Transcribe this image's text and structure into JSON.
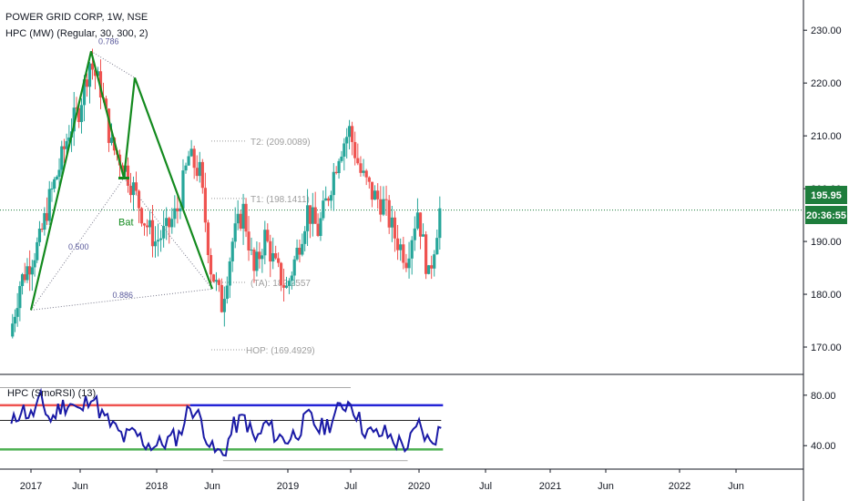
{
  "header": {
    "symbol_line": "POWER GRID CORP, 1W, NSE",
    "indicator_line": "HPC (MW) (Regular, 30, 300, 2)",
    "subpane_label": "HPC (SmoRSI) (13)"
  },
  "price_badge": {
    "price": "195.95",
    "countdown": "20:36:55",
    "color": "#1e7d3c"
  },
  "colors": {
    "up": "#26a69a",
    "down": "#ef5350",
    "pattern": "#138a1e",
    "rsi": "#1a1aa6",
    "upper_band": "#2424d6",
    "lower_band": "#4caf50",
    "grid_dotted": "#888888",
    "current_line": "#1e7d3c"
  },
  "chart_data": {
    "type": "candlestick",
    "title": "POWER GRID CORP, 1W, NSE",
    "ylim": [
      165,
      234
    ],
    "yticks": [
      170,
      180,
      190,
      200,
      210,
      220,
      230
    ],
    "ytick_labels": [
      "170.00",
      "180.00",
      "190.00",
      "200.00",
      "210.00",
      "220.00",
      "230.00"
    ],
    "x_labels": [
      "2017",
      "Jun",
      "2018",
      "Jun",
      "2019",
      "Jul",
      "2020",
      "Jul",
      "2021",
      "Jun",
      "2022",
      "Jun"
    ],
    "x_label_dates": [
      "2017-01",
      "2017-06",
      "2018-01",
      "2018-06",
      "2019-01",
      "2019-07",
      "2020-01",
      "2020-07",
      "2021-01",
      "2021-06",
      "2022-01",
      "2022-06"
    ],
    "last_price": 195.95,
    "close_series": [
      [
        "2016-11",
        172
      ],
      [
        "2016-12",
        182
      ],
      [
        "2017-01",
        186
      ],
      [
        "2017-02",
        190
      ],
      [
        "2017-03",
        198
      ],
      [
        "2017-04",
        204
      ],
      [
        "2017-05",
        211
      ],
      [
        "2017-06",
        215
      ],
      [
        "2017-07",
        224
      ],
      [
        "2017-08",
        219
      ],
      [
        "2017-09",
        208
      ],
      [
        "2017-10",
        205
      ],
      [
        "2017-11",
        200
      ],
      [
        "2017-12",
        194
      ],
      [
        "2018-01",
        190
      ],
      [
        "2018-02",
        192
      ],
      [
        "2018-03",
        196
      ],
      [
        "2018-04",
        206
      ],
      [
        "2018-05",
        203
      ],
      [
        "2018-06",
        185
      ],
      [
        "2018-07",
        178
      ],
      [
        "2018-08",
        190
      ],
      [
        "2018-09",
        196
      ],
      [
        "2018-10",
        184
      ],
      [
        "2018-11",
        191
      ],
      [
        "2018-12",
        185
      ],
      [
        "2019-01",
        181
      ],
      [
        "2019-02",
        188
      ],
      [
        "2019-03",
        196
      ],
      [
        "2019-04",
        192
      ],
      [
        "2019-05",
        199
      ],
      [
        "2019-06",
        207
      ],
      [
        "2019-07",
        211
      ],
      [
        "2019-08",
        203
      ],
      [
        "2019-09",
        199
      ],
      [
        "2019-10",
        197
      ],
      [
        "2019-11",
        191
      ],
      [
        "2019-12",
        187
      ],
      [
        "2020-01",
        196
      ],
      [
        "2020-02",
        183
      ],
      [
        "2020-03",
        195.95
      ]
    ],
    "harmonic_pattern": {
      "name": "Bat",
      "points": [
        [
          "2017-01",
          177
        ],
        [
          "2017-07",
          226
        ],
        [
          "2017-10",
          202
        ],
        [
          "2017-11",
          221
        ],
        [
          "2018-06",
          181
        ]
      ],
      "ratios": [
        "0.786",
        "0.500",
        "0.886"
      ],
      "targets": [
        {
          "label": "T2: (209.0089)",
          "value": 209.0089
        },
        {
          "label": "T1: (198.1411)",
          "value": 198.1411
        },
        {
          "label": "(TA): 182.2557",
          "value": 182.2557
        },
        {
          "label": "HOP: (169.4929)",
          "value": 169.4929
        }
      ]
    },
    "rsi": {
      "ylim": [
        25,
        90
      ],
      "yticks": [
        40,
        80
      ],
      "ytick_labels": [
        "40.00",
        "80.00"
      ],
      "upper_level": 72,
      "lower_level": 37,
      "values": [
        [
          "2016-11",
          55
        ],
        [
          "2016-12",
          70
        ],
        [
          "2017-01",
          63
        ],
        [
          "2017-02",
          76
        ],
        [
          "2017-03",
          60
        ],
        [
          "2017-04",
          71
        ],
        [
          "2017-05",
          74
        ],
        [
          "2017-06",
          66
        ],
        [
          "2017-07",
          82
        ],
        [
          "2017-08",
          64
        ],
        [
          "2017-09",
          55
        ],
        [
          "2017-10",
          46
        ],
        [
          "2017-11",
          50
        ],
        [
          "2017-12",
          42
        ],
        [
          "2018-01",
          40
        ],
        [
          "2018-02",
          44
        ],
        [
          "2018-03",
          48
        ],
        [
          "2018-04",
          72
        ],
        [
          "2018-05",
          60
        ],
        [
          "2018-06",
          36
        ],
        [
          "2018-07",
          33
        ],
        [
          "2018-08",
          55
        ],
        [
          "2018-09",
          62
        ],
        [
          "2018-10",
          43
        ],
        [
          "2018-11",
          58
        ],
        [
          "2018-12",
          47
        ],
        [
          "2019-01",
          45
        ],
        [
          "2019-02",
          52
        ],
        [
          "2019-03",
          63
        ],
        [
          "2019-04",
          53
        ],
        [
          "2019-05",
          58
        ],
        [
          "2019-06",
          70
        ],
        [
          "2019-07",
          76
        ],
        [
          "2019-08",
          55
        ],
        [
          "2019-09",
          48
        ],
        [
          "2019-10",
          50
        ],
        [
          "2019-11",
          43
        ],
        [
          "2019-12",
          40
        ],
        [
          "2020-01",
          56
        ],
        [
          "2020-02",
          41
        ],
        [
          "2020-03",
          54
        ]
      ]
    }
  }
}
